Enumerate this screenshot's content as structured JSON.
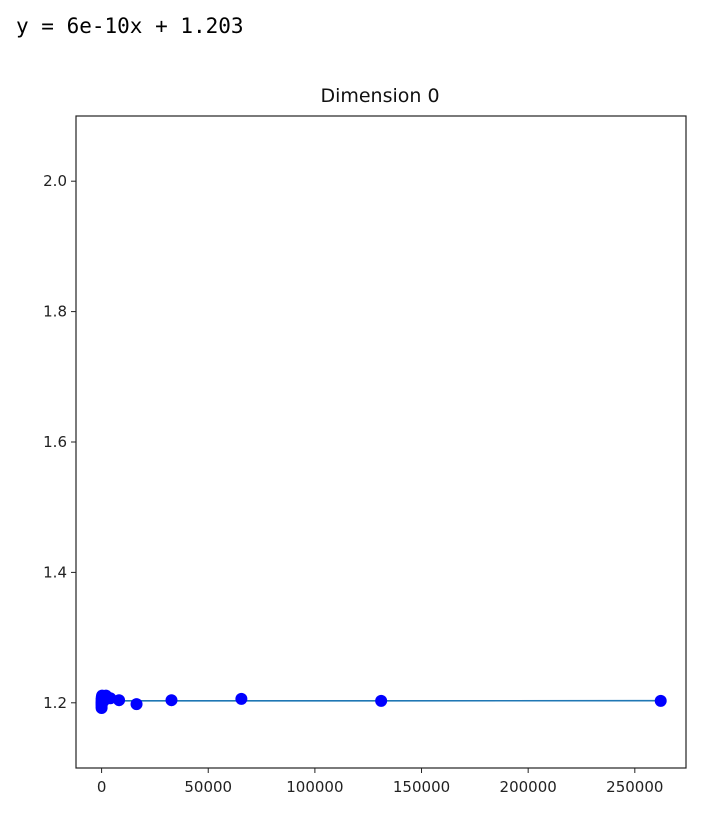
{
  "equation": "y = 6e-10x + 1.203",
  "chart_data": {
    "type": "scatter",
    "title": "Dimension 0",
    "xlabel": "",
    "ylabel": "",
    "xlim": [
      -12000,
      274000
    ],
    "ylim": [
      1.1,
      2.1
    ],
    "grid": false,
    "x_ticks": [
      0,
      50000,
      100000,
      150000,
      200000,
      250000
    ],
    "x_tick_labels": [
      "0",
      "50000",
      "100000",
      "150000",
      "200000",
      "250000"
    ],
    "y_ticks": [
      1.2,
      1.4,
      1.6,
      1.8,
      2.0
    ],
    "y_tick_labels": [
      "1.2",
      "1.4",
      "1.6",
      "1.8",
      "2.0"
    ],
    "series": [
      {
        "kind": "scatter",
        "color": "#0000ff",
        "points": [
          {
            "x": 1,
            "y": 1.192
          },
          {
            "x": 2,
            "y": 1.195
          },
          {
            "x": 4,
            "y": 1.198
          },
          {
            "x": 8,
            "y": 1.2
          },
          {
            "x": 16,
            "y": 1.202
          },
          {
            "x": 32,
            "y": 1.205
          },
          {
            "x": 64,
            "y": 1.207
          },
          {
            "x": 128,
            "y": 1.209
          },
          {
            "x": 256,
            "y": 1.211
          },
          {
            "x": 512,
            "y": 1.206
          },
          {
            "x": 1024,
            "y": 1.203
          },
          {
            "x": 2048,
            "y": 1.211
          },
          {
            "x": 4096,
            "y": 1.207
          },
          {
            "x": 8192,
            "y": 1.204
          },
          {
            "x": 16384,
            "y": 1.198
          },
          {
            "x": 32768,
            "y": 1.204
          },
          {
            "x": 65536,
            "y": 1.206
          },
          {
            "x": 131072,
            "y": 1.203
          },
          {
            "x": 262144,
            "y": 1.203
          }
        ]
      },
      {
        "kind": "line",
        "color": "#1f77b4",
        "x": [
          0,
          262144
        ],
        "y": [
          1.203,
          1.2032
        ]
      }
    ]
  }
}
